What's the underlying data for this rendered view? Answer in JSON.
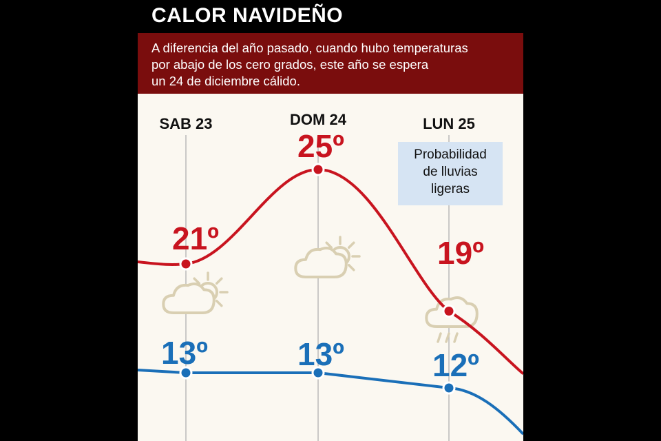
{
  "title": "CALOR NAVIDEÑO",
  "subtitle_lines": [
    "A diferencia del año pasado, cuando hubo temperaturas",
    "por abajo de los cero grados, este año se espera",
    "un 24 de diciembre cálido."
  ],
  "note_lines": [
    "Probabilidad",
    "de lluvias",
    "ligeras"
  ],
  "colors": {
    "max": "#c8141f",
    "min": "#1a6fb8",
    "banner": "#7a0d0d",
    "icon": "#d9cfb2"
  },
  "chart_data": {
    "type": "line",
    "title": "CALOR NAVIDEÑO",
    "categories": [
      "SAB 23",
      "DOM 24",
      "LUN 25"
    ],
    "series": [
      {
        "values": [
          21,
          25,
          19
        ]
      },
      {
        "values": [
          13,
          13,
          12
        ]
      }
    ],
    "value_labels": {
      "max": [
        "21º",
        "25º",
        "19º"
      ],
      "min": [
        "13º",
        "13º",
        "12º"
      ]
    },
    "icons": [
      "partly-cloudy-icon",
      "partly-cloudy-icon",
      "rain-cloud-icon"
    ],
    "grid": false
  }
}
